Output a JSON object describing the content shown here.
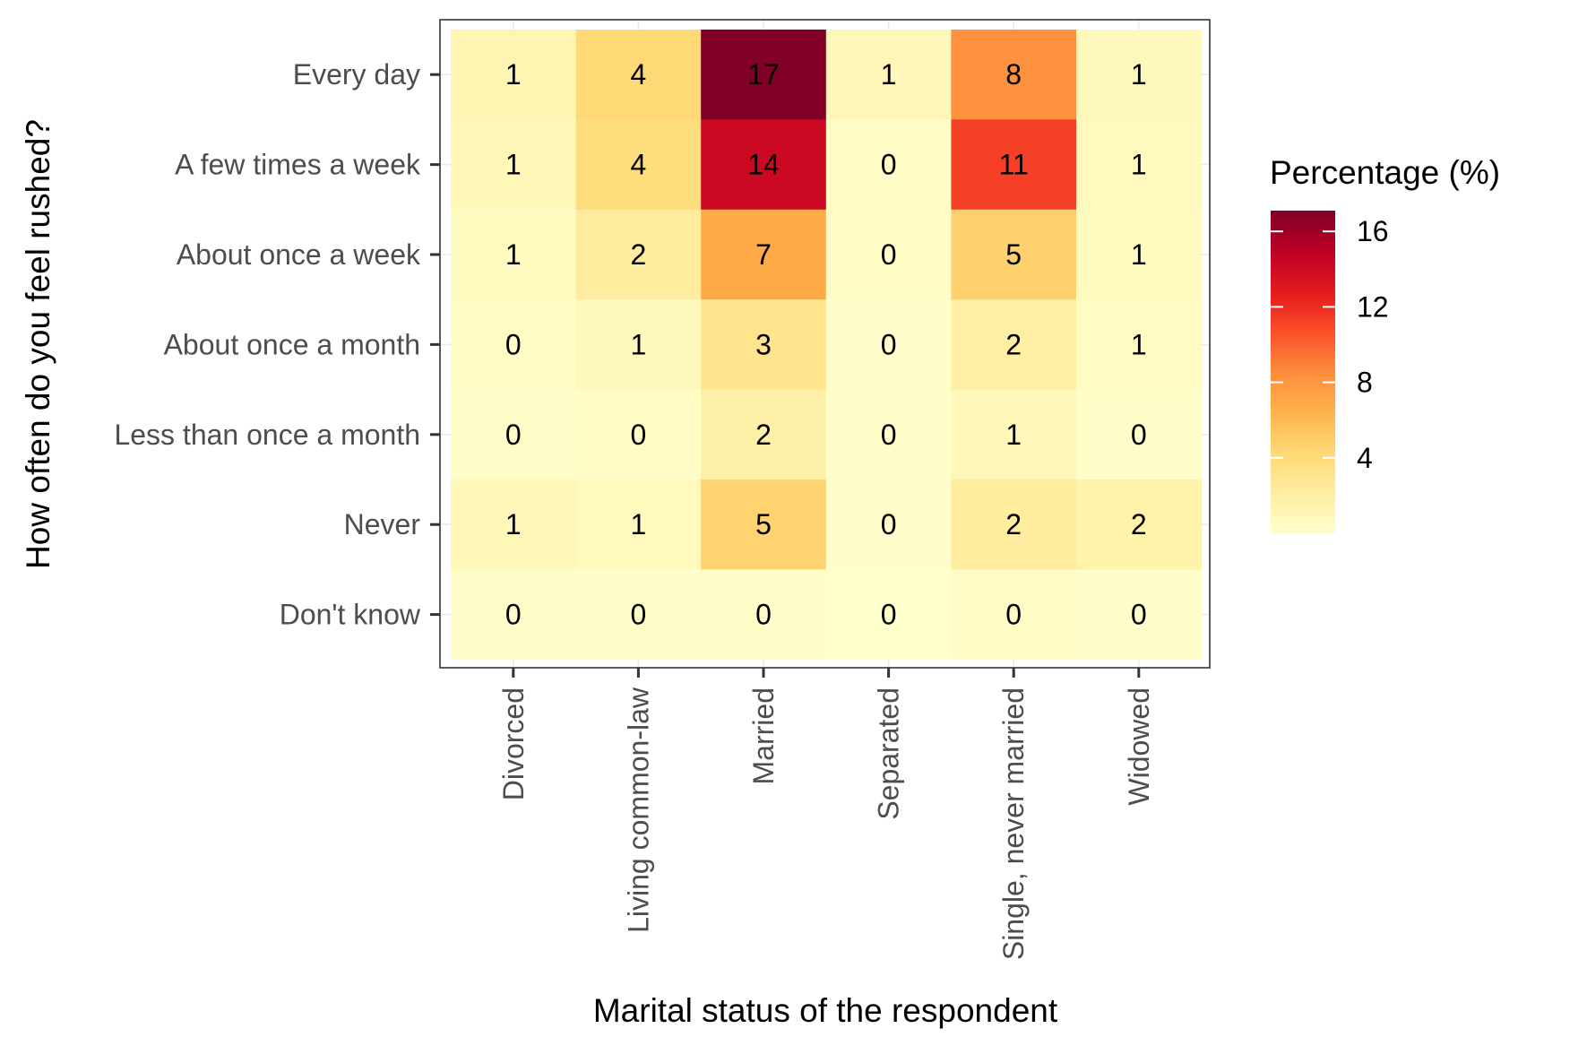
{
  "chart_data": {
    "type": "heatmap",
    "title": "",
    "xlabel": "Marital status of the respondent",
    "ylabel": "How often do you feel rushed?",
    "x_categories": [
      "Divorced",
      "Living common-law",
      "Married",
      "Separated",
      "Single, never married",
      "Widowed"
    ],
    "y_categories": [
      "Every day",
      "A few times a week",
      "About once a week",
      "About once a month",
      "Less than once a month",
      "Never",
      "Don't know"
    ],
    "values": [
      [
        1,
        4,
        17,
        1,
        8,
        1
      ],
      [
        1,
        4,
        14,
        0,
        11,
        1
      ],
      [
        1,
        2,
        7,
        0,
        5,
        1
      ],
      [
        0,
        1,
        3,
        0,
        2,
        1
      ],
      [
        0,
        0,
        2,
        0,
        1,
        0
      ],
      [
        1,
        1,
        5,
        0,
        2,
        2
      ],
      [
        0,
        0,
        0,
        0,
        0,
        0
      ]
    ],
    "fill_values": [
      [
        1.2,
        4.3,
        17.1,
        0.9,
        8.3,
        0.8
      ],
      [
        1.0,
        3.9,
        14.2,
        0.3,
        11.3,
        0.7
      ],
      [
        0.6,
        2.2,
        6.9,
        0.3,
        4.7,
        0.6
      ],
      [
        0.3,
        0.8,
        3.1,
        0.1,
        2.0,
        0.5
      ],
      [
        0.2,
        0.3,
        1.8,
        0.1,
        0.9,
        0.2
      ],
      [
        1.0,
        0.7,
        4.6,
        0.1,
        2.2,
        1.6
      ],
      [
        0.1,
        0.1,
        0.2,
        0.0,
        0.3,
        0.1
      ]
    ],
    "legend": {
      "title": "Percentage (%)",
      "ticks": [
        4,
        8,
        12,
        16
      ],
      "range": [
        0,
        17.1
      ],
      "position": "right"
    },
    "colors": [
      "#ffffcc",
      "#ffeda0",
      "#fed976",
      "#feb24c",
      "#fd8d3c",
      "#fc4e2a",
      "#e31a1c",
      "#bd0026",
      "#800026"
    ],
    "grid": true
  }
}
